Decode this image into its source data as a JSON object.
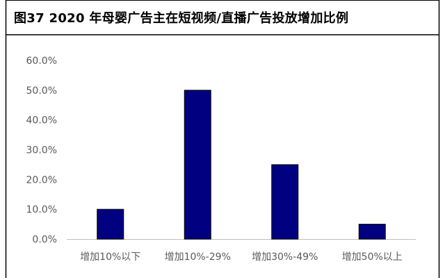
{
  "figure_title": "图37 2020 年母婴广告主在短视频/直播广告投放增加比例",
  "chart_data": {
    "type": "bar",
    "title": "",
    "xlabel": "",
    "ylabel": "",
    "categories": [
      "增加10%以下",
      "增加10%-29%",
      "增加30%-49%",
      "增加50%以上"
    ],
    "values": [
      10.0,
      50.0,
      25.0,
      5.0
    ],
    "ylim": [
      0,
      60
    ],
    "yticks": [
      "0.0%",
      "10.0%",
      "20.0%",
      "30.0%",
      "40.0%",
      "50.0%",
      "60.0%"
    ],
    "grid": false,
    "legend": "none",
    "colors": {
      "bar": "#000080",
      "bar_edge": "#000000",
      "axis": "#bfbfbf",
      "frame": "#000000"
    }
  }
}
